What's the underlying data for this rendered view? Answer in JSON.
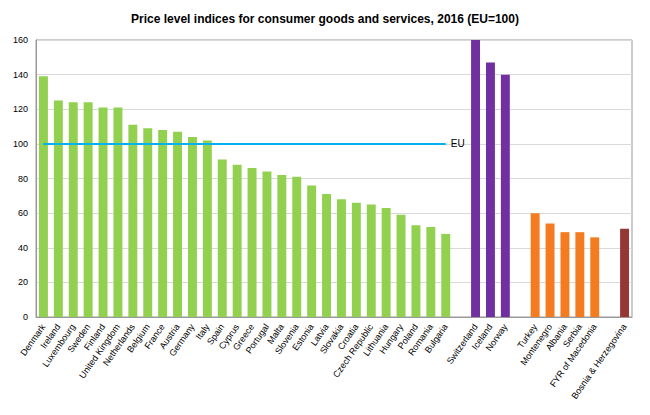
{
  "chart_data": {
    "type": "bar",
    "title": "Price level indices for consumer goods and services, 2016 (EU=100)",
    "categories": [
      "Denmark",
      "Ireland",
      "Luxembourg",
      "Sweden",
      "Finland",
      "United Kingdom",
      "Netherlands",
      "Belgium",
      "France",
      "Austria",
      "Germany",
      "Italy",
      "Spain",
      "Cyprus",
      "Greece",
      "Portugal",
      "Malta",
      "Slovenia",
      "Estonia",
      "Latvia",
      "Slovakia",
      "Croatia",
      "Czech Republic",
      "Lithuania",
      "Hungary",
      "Poland",
      "Romania",
      "Bulgaria",
      null,
      "Switzerland",
      "Iceland",
      "Norway",
      null,
      "Turkey",
      "Montenegro",
      "Albania",
      "Serbia",
      "FYR of Macedonia",
      null,
      "Bosnia & Herzegovina"
    ],
    "values": [
      139,
      125,
      124,
      124,
      121,
      121,
      111,
      109,
      108,
      107,
      104,
      102,
      91,
      88,
      86,
      84,
      82,
      81,
      76,
      71,
      68,
      66,
      65,
      63,
      59,
      53,
      52,
      48,
      null,
      160,
      147,
      140,
      null,
      60,
      54,
      49,
      49,
      46,
      null,
      51
    ],
    "colors": [
      "#92d050",
      "#92d050",
      "#92d050",
      "#92d050",
      "#92d050",
      "#92d050",
      "#92d050",
      "#92d050",
      "#92d050",
      "#92d050",
      "#92d050",
      "#92d050",
      "#92d050",
      "#92d050",
      "#92d050",
      "#92d050",
      "#92d050",
      "#92d050",
      "#92d050",
      "#92d050",
      "#92d050",
      "#92d050",
      "#92d050",
      "#92d050",
      "#92d050",
      "#92d050",
      "#92d050",
      "#92d050",
      null,
      "#7030a0",
      "#7030a0",
      "#7030a0",
      null,
      "#f47c20",
      "#f47c20",
      "#f47c20",
      "#f47c20",
      "#f47c20",
      null,
      "#953735"
    ],
    "ylim": [
      0,
      160
    ],
    "yticks": [
      0,
      20,
      40,
      60,
      80,
      100,
      120,
      140,
      160
    ],
    "grid": true,
    "annotations": [
      {
        "text": "EU",
        "y": 100,
        "from": "Denmark",
        "to": "Bulgaria",
        "color": "#00b0f0"
      }
    ]
  }
}
